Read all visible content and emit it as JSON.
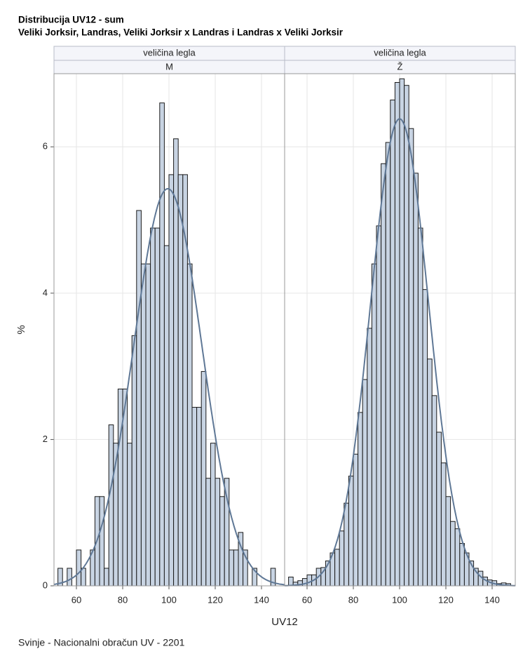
{
  "title": "Distribucija UV12 - sum",
  "subtitle": "Veliki Jorksir, Landras, Veliki Jorksir x Landras i Landras x Veliki Jorksir",
  "y_label": "%",
  "x_label": "UV12",
  "footnote": "Svinje - Nacionalni obračun UV - 2201",
  "chart_data": [
    {
      "type": "histogram",
      "panel_header": "veličina legla",
      "panel_label": "M",
      "bins": [
        52,
        54,
        56,
        58,
        60,
        62,
        64,
        66,
        68,
        70,
        72,
        74,
        76,
        78,
        80,
        82,
        84,
        86,
        88,
        90,
        92,
        94,
        96,
        98,
        100,
        102,
        104,
        106,
        108,
        110,
        112,
        114,
        116,
        118,
        120,
        122,
        124,
        126,
        128,
        130,
        132,
        134,
        136,
        138,
        140,
        142,
        144,
        146,
        148
      ],
      "values": [
        0.24,
        0,
        0.24,
        0,
        0.49,
        0.24,
        0,
        0.49,
        1.22,
        1.22,
        0.24,
        2.2,
        1.95,
        2.69,
        2.69,
        1.95,
        3.42,
        5.13,
        4.4,
        4.4,
        4.89,
        4.89,
        6.6,
        4.65,
        5.62,
        6.11,
        5.62,
        5.62,
        4.4,
        2.44,
        2.44,
        2.93,
        1.47,
        1.95,
        1.47,
        1.22,
        1.47,
        0.49,
        0.49,
        0.73,
        0.49,
        0,
        0.24,
        0,
        0,
        0,
        0.24,
        0
      ],
      "normal_fit": {
        "mean": 99.5,
        "std": 14.7
      },
      "color": "#c8d4e3",
      "curve_color": "#5f7896",
      "xlim": [
        50.3,
        150
      ],
      "xticks": [
        60,
        80,
        100,
        120,
        140
      ],
      "ylim": [
        0,
        7
      ],
      "yticks": [
        0,
        2,
        4,
        6
      ],
      "grid": true
    },
    {
      "type": "histogram",
      "panel_header": "veličina legla",
      "panel_label": "Ž",
      "bins": [
        52,
        54,
        56,
        58,
        60,
        62,
        64,
        66,
        68,
        70,
        72,
        74,
        76,
        78,
        80,
        82,
        84,
        86,
        88,
        90,
        92,
        94,
        96,
        98,
        100,
        102,
        104,
        106,
        108,
        110,
        112,
        114,
        116,
        118,
        120,
        122,
        124,
        126,
        128,
        130,
        132,
        134,
        136,
        138,
        140,
        142,
        144,
        146,
        148
      ],
      "values": [
        0.12,
        0.05,
        0.07,
        0.1,
        0.15,
        0.15,
        0.24,
        0.25,
        0.34,
        0.45,
        0.5,
        0.75,
        1.13,
        1.5,
        1.8,
        2.37,
        2.82,
        3.52,
        4.4,
        4.92,
        5.77,
        6.06,
        6.64,
        6.88,
        6.93,
        6.84,
        6.25,
        5.64,
        4.89,
        4.05,
        3.1,
        2.6,
        2.1,
        1.68,
        1.22,
        0.88,
        0.78,
        0.58,
        0.45,
        0.34,
        0.24,
        0.2,
        0.12,
        0.08,
        0.07,
        0.03,
        0.04,
        0.03
      ],
      "normal_fit": {
        "mean": 100,
        "std": 12.5
      },
      "color": "#c8d4e3",
      "curve_color": "#5f7896",
      "xlim": [
        50.3,
        150
      ],
      "xticks": [
        60,
        80,
        100,
        120,
        140
      ],
      "ylim": [
        0,
        7
      ],
      "yticks": [
        0,
        2,
        4,
        6
      ],
      "grid": true
    }
  ]
}
